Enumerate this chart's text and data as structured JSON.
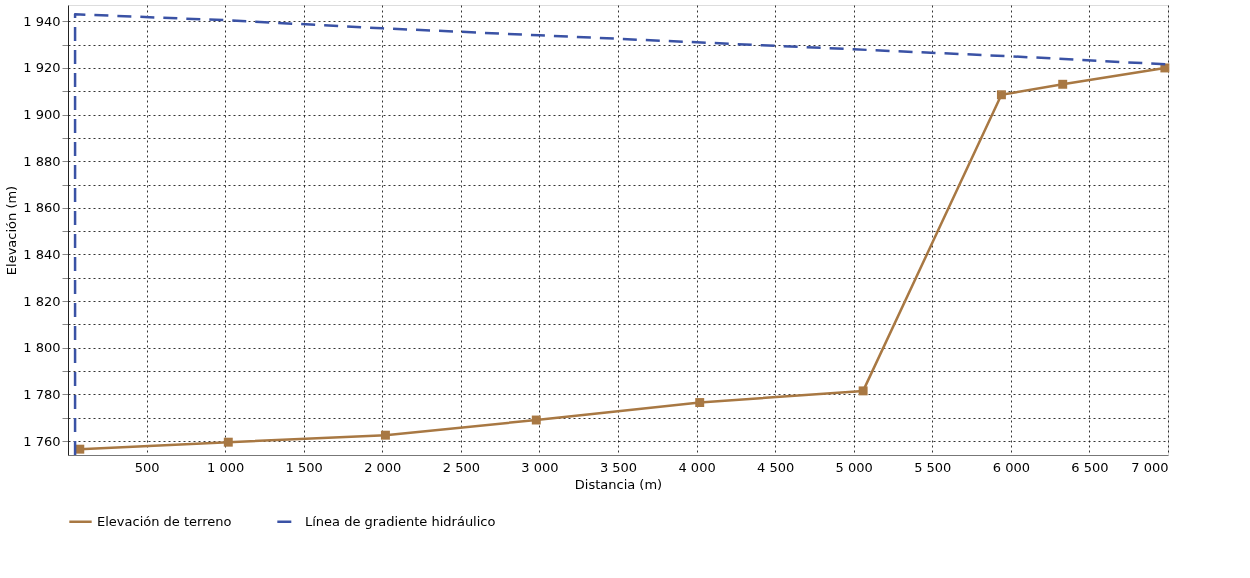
{
  "chart_data": {
    "type": "line",
    "xlabel": "Distancia (m)",
    "ylabel": "Elevación (m)",
    "xlim": [
      0,
      7000
    ],
    "ylim": [
      1754,
      1947
    ],
    "xticks": [
      {
        "value": 500,
        "label": "500"
      },
      {
        "value": 1000,
        "label": "1 000"
      },
      {
        "value": 1500,
        "label": "1 500"
      },
      {
        "value": 2000,
        "label": "2 000"
      },
      {
        "value": 2500,
        "label": "2 500"
      },
      {
        "value": 3000,
        "label": "3 000"
      },
      {
        "value": 3500,
        "label": "3 500"
      },
      {
        "value": 4000,
        "label": "4 000"
      },
      {
        "value": 4500,
        "label": "4 500"
      },
      {
        "value": 5000,
        "label": "5 000"
      },
      {
        "value": 5500,
        "label": "5 500"
      },
      {
        "value": 6000,
        "label": "6 000"
      },
      {
        "value": 6500,
        "label": "6 500"
      },
      {
        "value": 7000,
        "label": "7 000"
      }
    ],
    "yticks": [
      {
        "value": 1760,
        "label": "1 760"
      },
      {
        "value": 1770,
        "label": null
      },
      {
        "value": 1780,
        "label": "1 780"
      },
      {
        "value": 1790,
        "label": null
      },
      {
        "value": 1800,
        "label": "1 800"
      },
      {
        "value": 1810,
        "label": null
      },
      {
        "value": 1820,
        "label": "1 820"
      },
      {
        "value": 1830,
        "label": null
      },
      {
        "value": 1840,
        "label": "1 840"
      },
      {
        "value": 1850,
        "label": null
      },
      {
        "value": 1860,
        "label": "1 860"
      },
      {
        "value": 1870,
        "label": null
      },
      {
        "value": 1880,
        "label": "1 880"
      },
      {
        "value": 1890,
        "label": null
      },
      {
        "value": 1900,
        "label": "1 900"
      },
      {
        "value": 1910,
        "label": null
      },
      {
        "value": 1920,
        "label": "1 920"
      },
      {
        "value": 1930,
        "label": null
      },
      {
        "value": 1940,
        "label": "1 940"
      }
    ],
    "grid": true,
    "legend": "bottom",
    "series": [
      {
        "name": "Elevación de terreno",
        "color": "#a87843",
        "marker": "square",
        "line_style": "solid",
        "x": [
          75,
          1020,
          2020,
          2980,
          4020,
          5060,
          5940,
          6330,
          6980
        ],
        "values": [
          1756.5,
          1759.5,
          1762.5,
          1769,
          1776.5,
          1781.5,
          1908.5,
          1913,
          1920
        ]
      },
      {
        "name": "Línea de gradiente hidráulico",
        "color": "#3a52a5",
        "marker": "none",
        "line_style": "dashed",
        "x": [
          45,
          45,
          1000,
          2000,
          3000,
          4000,
          5000,
          6000,
          7000
        ],
        "values": [
          1754,
          1943,
          1940.5,
          1937,
          1934,
          1931,
          1928,
          1925,
          1921.5
        ]
      }
    ]
  }
}
